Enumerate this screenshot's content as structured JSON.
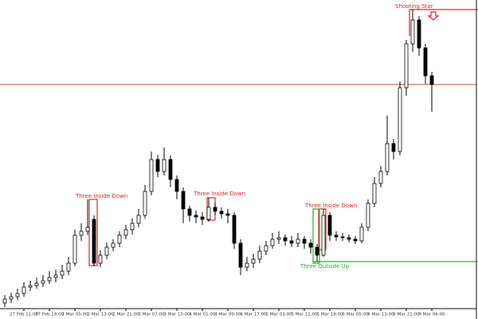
{
  "chart_data": {
    "type": "candlestick",
    "ohlc": [
      [
        20,
        30,
        15,
        25
      ],
      [
        25,
        33,
        20,
        28
      ],
      [
        28,
        38,
        24,
        32
      ],
      [
        32,
        46,
        28,
        40
      ],
      [
        40,
        48,
        35,
        42
      ],
      [
        42,
        52,
        38,
        45
      ],
      [
        45,
        55,
        40,
        48
      ],
      [
        48,
        60,
        44,
        52
      ],
      [
        52,
        62,
        46,
        55
      ],
      [
        55,
        68,
        50,
        60
      ],
      [
        60,
        78,
        55,
        70
      ],
      [
        70,
        112,
        66,
        105
      ],
      [
        105,
        120,
        98,
        110
      ],
      [
        110,
        150,
        105,
        115
      ],
      [
        125,
        130,
        66,
        70
      ],
      [
        70,
        86,
        65,
        80
      ],
      [
        80,
        96,
        75,
        90
      ],
      [
        90,
        100,
        85,
        95
      ],
      [
        95,
        110,
        90,
        105
      ],
      [
        105,
        118,
        100,
        112
      ],
      [
        112,
        126,
        106,
        120
      ],
      [
        120,
        138,
        115,
        130
      ],
      [
        130,
        168,
        126,
        160
      ],
      [
        160,
        210,
        155,
        200
      ],
      [
        200,
        206,
        178,
        185
      ],
      [
        185,
        215,
        180,
        200
      ],
      [
        200,
        205,
        165,
        175
      ],
      [
        175,
        180,
        150,
        160
      ],
      [
        160,
        165,
        120,
        138
      ],
      [
        138,
        142,
        122,
        130
      ],
      [
        130,
        136,
        120,
        128
      ],
      [
        128,
        134,
        118,
        125
      ],
      [
        125,
        152,
        122,
        140
      ],
      [
        140,
        146,
        130,
        135
      ],
      [
        135,
        140,
        126,
        132
      ],
      [
        132,
        138,
        120,
        130
      ],
      [
        130,
        134,
        88,
        95
      ],
      [
        95,
        100,
        55,
        65
      ],
      [
        65,
        78,
        60,
        70
      ],
      [
        70,
        82,
        64,
        75
      ],
      [
        75,
        92,
        70,
        85
      ],
      [
        85,
        98,
        80,
        92
      ],
      [
        92,
        108,
        88,
        100
      ],
      [
        100,
        110,
        94,
        102
      ],
      [
        102,
        106,
        92,
        98
      ],
      [
        98,
        104,
        90,
        95
      ],
      [
        95,
        108,
        90,
        100
      ],
      [
        100,
        104,
        88,
        95
      ],
      [
        95,
        100,
        82,
        90
      ],
      [
        90,
        94,
        72,
        80
      ],
      [
        80,
        138,
        78,
        130
      ],
      [
        130,
        134,
        98,
        105
      ],
      [
        105,
        110,
        98,
        103
      ],
      [
        103,
        108,
        98,
        102
      ],
      [
        102,
        106,
        96,
        100
      ],
      [
        100,
        104,
        94,
        98
      ],
      [
        98,
        120,
        95,
        115
      ],
      [
        115,
        150,
        110,
        145
      ],
      [
        145,
        178,
        140,
        170
      ],
      [
        170,
        192,
        165,
        185
      ],
      [
        185,
        255,
        180,
        220
      ],
      [
        220,
        226,
        200,
        210
      ],
      [
        210,
        298,
        205,
        290
      ],
      [
        290,
        350,
        280,
        345
      ],
      [
        345,
        388,
        335,
        375
      ],
      [
        375,
        380,
        330,
        340
      ],
      [
        340,
        345,
        295,
        305
      ],
      [
        305,
        310,
        260,
        294
      ]
    ],
    "categories": [
      null,
      null,
      null,
      "27 Feb 11:00",
      null,
      null,
      null,
      "27 Feb 19:00",
      null,
      null,
      null,
      "2 Mar 05:00",
      null,
      null,
      null,
      "2 Mar 13:00",
      null,
      null,
      null,
      "2 Mar 21:00",
      null,
      null,
      null,
      "3 Mar 07:00",
      null,
      null,
      null,
      "3 Mar 15:00",
      null,
      null,
      null,
      "4 Mar 01:00",
      null,
      null,
      null,
      "4 Mar 09:00",
      null,
      null,
      null,
      "4 Mar 17:00",
      null,
      null,
      null,
      "5 Mar 03:00",
      null,
      null,
      null,
      "5 Mar 11:00",
      null,
      null,
      null,
      "5 Mar 19:00",
      null,
      null,
      null,
      "6 Mar 05:00",
      null,
      null,
      null,
      "6 Mar 13:00",
      null,
      null,
      null,
      "6 Mar 21:00",
      null,
      null,
      null,
      "9 Mar 06:00"
    ],
    "ylim": [
      15,
      400
    ],
    "price_line": 294,
    "annotations": [
      "Three Inside Down",
      "Three Inside Down",
      "Three Inside Down",
      "Three Outside Up",
      "Shooting Star"
    ]
  }
}
